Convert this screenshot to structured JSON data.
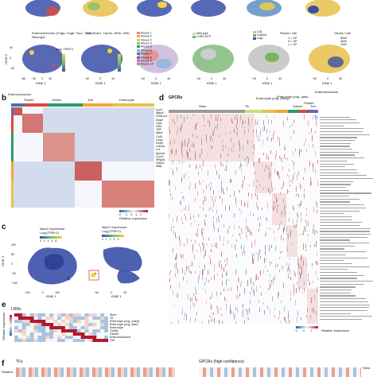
{
  "panel_labels": {
    "b": "b",
    "c": "c",
    "d": "d",
    "e": "e",
    "f": "f"
  },
  "top_row": {
    "colorbar_labels": [
      "Log₂ TPM+1",
      "Reads / cell",
      "Genes / cell"
    ],
    "reads_ticks": [
      "1 × 10⁶",
      "5 × 10⁵",
      "1 × 10⁵"
    ],
    "genes_ticks": [
      "8000",
      "4000",
      "1000"
    ],
    "enteroendocrine_title": "Enteroendocrine (Chga, Chgb, Tac1, Tph1, Neurog3)",
    "tuft_title": "Tuft (Dclk1, Trpm5, Gfi1b, Il25)",
    "legend_mouse": [
      "Mouse 1",
      "Mouse 2",
      "Mouse 3",
      "Mouse 4",
      "Mouse 5",
      "Mouse 6",
      "Mouse 7",
      "Mouse 8",
      "Mouse 9",
      "Mouse 10"
    ],
    "legend_gfp": [
      "Wild type",
      "LGR5-GFP"
    ],
    "legend_markers": [
      "Cd1",
      "Cdk4d4",
      "Lrig1"
    ],
    "x_ticks": [
      "−40",
      "0",
      "40"
    ],
    "x_ticks_left": [
      "−80",
      "−40",
      "0",
      "40"
    ],
    "y_ticks": [
      "40",
      "0",
      "−40"
    ],
    "x_axis": "tSNE 1",
    "y_axis": "tSNE 2",
    "colorbar_ticks": [
      "0",
      "1",
      "2",
      "3",
      "4",
      "5"
    ]
  },
  "panel_b": {
    "groups": [
      "Enteroendocrine",
      "Paneth",
      "Goblet",
      "Tuft",
      "Enterocyte"
    ],
    "genes": [
      "Lyz1",
      "Mptx2",
      "Defa-rs1",
      "Ang4",
      "Clps",
      "Gfi3",
      "Tff3",
      "Manf",
      "Ccl9",
      "Lrmp",
      "Dclk1",
      "Cd24a",
      "Lct",
      "Apoa4",
      "Cyrx2",
      "Reg3a",
      "Fabp1",
      "Mttp"
    ],
    "colorbar_ticks": [
      "−2",
      "−1",
      "0",
      "1",
      "2"
    ],
    "colorbar_label": "Relative expression"
  },
  "panel_c": {
    "left_title": "Mptx2 expression",
    "left_unit": "Log₂(TPM+1)",
    "right_title": "Mptx2 expression",
    "right_unit": "Log₂(TPM+1)",
    "left_ticks": [
      "0",
      "2",
      "4",
      "6",
      "8"
    ],
    "right_ticks": [
      "0",
      "1",
      "2",
      "3",
      "4"
    ],
    "x_ticks_left": [
      "−100",
      "0",
      "100"
    ],
    "x_ticks_right": [
      "−50",
      "0",
      "50"
    ],
    "y_ticks": [
      "100",
      "50",
      "0",
      "−50",
      "−100"
    ],
    "x_axis": "tSNE 1",
    "y_axis": "tSNE 2"
  },
  "panel_d": {
    "title": "GPCRs",
    "groups": [
      "Stem",
      "TA",
      "Enterocyte prog. (early)",
      "Enterocyte prog. (late)",
      "Goblet",
      "Paneth",
      "Enteroendocrine",
      "Tuft"
    ],
    "group_colors": [
      "#9b9b9b",
      "#c7e07a",
      "#e8c14a",
      "#f4a636",
      "#2c9a6b",
      "#e0473a",
      "#4f6fb5",
      "#8a5bb0"
    ],
    "colorbar_ticks": [
      "−1",
      "0",
      "1"
    ],
    "colorbar_label": "Relative expression"
  },
  "panel_e": {
    "title": "LRRs",
    "groups": [
      "Stem",
      "TA",
      "Enterocyte prog. (early)",
      "Enterocyte prog. (late)",
      "Enterocyte",
      "Goblet",
      "Paneth",
      "Enteroendocrine",
      "Tuft"
    ],
    "ylabel": "Relative expression"
  },
  "panel_f": {
    "left_title": "TFs",
    "right_title": "GPCRs (high-confidence)",
    "right_group": "Stem",
    "left_ylabel": "Relative"
  },
  "colors": {
    "heat_red": "#b2182b",
    "heat_blue": "#2166ac",
    "cluster_blue": "#3a4fa8",
    "yellow": "#f2d33a"
  }
}
